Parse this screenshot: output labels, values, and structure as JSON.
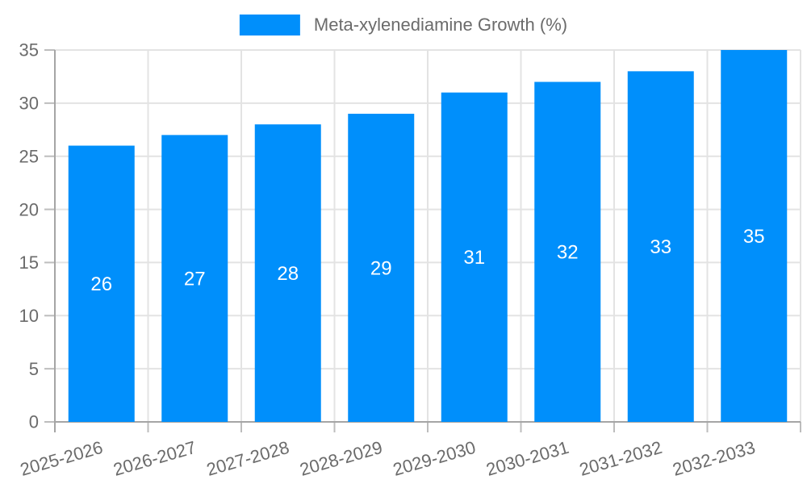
{
  "legend": {
    "label": "Meta-xylenediamine Growth (%)",
    "marker_color": "#008FFB"
  },
  "chart_data": {
    "type": "bar",
    "title": "Meta-xylenediamine Growth (%)",
    "categories": [
      "2025-2026",
      "2026-2027",
      "2027-2028",
      "2028-2029",
      "2029-2030",
      "2030-2031",
      "2031-2032",
      "2032-2033"
    ],
    "series": [
      {
        "name": "Meta-xylenediamine Growth (%)",
        "values": [
          26,
          27,
          28,
          29,
          31,
          32,
          33,
          35
        ]
      }
    ],
    "values": [
      26,
      27,
      28,
      29,
      31,
      32,
      33,
      35
    ],
    "value_labels": [
      "26",
      "27",
      "28",
      "29",
      "31",
      "32",
      "33",
      "35"
    ],
    "xlabel": "",
    "ylabel": "",
    "ylim": [
      0,
      35
    ],
    "yticks": [
      0,
      5,
      10,
      15,
      20,
      25,
      30,
      35
    ],
    "grid": true,
    "legend_position": "top",
    "x_label_rotation_deg": -16,
    "colors": {
      "bar": "#008FFB",
      "bar_value_label": "#FFFFFF",
      "axis_text": "#6B6B6B",
      "grid_line": "#E3E3E3",
      "tick_mark": "#BDBDBD",
      "axis_line": "#A5A5A5",
      "background": "#FFFFFF"
    }
  }
}
